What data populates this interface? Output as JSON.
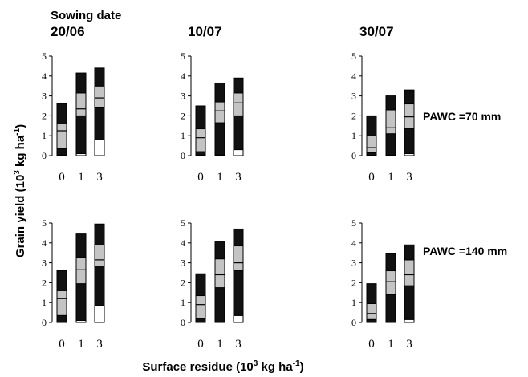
{
  "figure": {
    "header_label": "Sowing date",
    "y_axis_title_main": "Grain yield (10",
    "y_axis_title_exp": "3",
    "y_axis_title_unit": " kg ha",
    "y_axis_title_unit_exp": "-1",
    "y_axis_title_close": ")",
    "x_axis_title_main": "Surface residue (10",
    "x_axis_title_exp": "3",
    "x_axis_title_unit": " kg ha",
    "x_axis_title_unit_exp": "-1",
    "x_axis_title_close": ")",
    "columns": [
      "20/06",
      "10/07",
      "30/07"
    ],
    "rows": [
      "PAWC =70 mm",
      "PAWC =140 mm"
    ],
    "colors": {
      "outer": "#111111",
      "inner": "#c4c4c4",
      "base": "#ffffff",
      "ink": "#000000"
    }
  },
  "chart_data": {
    "type": "bar",
    "description_of_bar": "box plot style stacked bar: white bottom to p10, black to q1, grey q1..q3 with median line, black to max",
    "categories": [
      "0",
      "1",
      "3"
    ],
    "ylim": [
      0,
      5
    ],
    "yticks": [
      0,
      1,
      2,
      3,
      4,
      5
    ],
    "panels": [
      {
        "row": "PAWC =70 mm",
        "column": "20/06",
        "bars": [
          {
            "x": "0",
            "min": 0,
            "p10": 0.02,
            "q1": 0.35,
            "median": 1.25,
            "q3": 1.6,
            "max": 2.6
          },
          {
            "x": "1",
            "min": 0,
            "p10": 0.1,
            "q1": 2.0,
            "median": 2.35,
            "q3": 3.15,
            "max": 4.15
          },
          {
            "x": "3",
            "min": 0,
            "p10": 0.8,
            "q1": 2.4,
            "median": 2.9,
            "q3": 3.5,
            "max": 4.4
          }
        ]
      },
      {
        "row": "PAWC =70 mm",
        "column": "10/07",
        "bars": [
          {
            "x": "0",
            "min": 0,
            "p10": 0.02,
            "q1": 0.2,
            "median": 0.9,
            "q3": 1.35,
            "max": 2.5
          },
          {
            "x": "1",
            "min": 0,
            "p10": 0.03,
            "q1": 1.65,
            "median": 2.25,
            "q3": 2.7,
            "max": 3.65
          },
          {
            "x": "3",
            "min": 0,
            "p10": 0.3,
            "q1": 2.0,
            "median": 2.65,
            "q3": 3.15,
            "max": 3.9
          }
        ]
      },
      {
        "row": "PAWC =70 mm",
        "column": "30/07",
        "bars": [
          {
            "x": "0",
            "min": 0,
            "p10": 0.02,
            "q1": 0.15,
            "median": 0.4,
            "q3": 1.0,
            "max": 2.0
          },
          {
            "x": "1",
            "min": 0,
            "p10": 0.02,
            "q1": 1.1,
            "median": 1.4,
            "q3": 2.3,
            "max": 3.0
          },
          {
            "x": "3",
            "min": 0,
            "p10": 0.1,
            "q1": 1.35,
            "median": 1.95,
            "q3": 2.6,
            "max": 3.3
          }
        ]
      },
      {
        "row": "PAWC =140 mm",
        "column": "20/06",
        "bars": [
          {
            "x": "0",
            "min": 0,
            "p10": 0.02,
            "q1": 0.35,
            "median": 1.2,
            "q3": 1.6,
            "max": 2.6
          },
          {
            "x": "1",
            "min": 0,
            "p10": 0.1,
            "q1": 1.95,
            "median": 2.65,
            "q3": 3.25,
            "max": 4.45
          },
          {
            "x": "3",
            "min": 0,
            "p10": 0.85,
            "q1": 2.8,
            "median": 3.15,
            "q3": 3.9,
            "max": 4.95
          }
        ]
      },
      {
        "row": "PAWC =140 mm",
        "column": "10/07",
        "bars": [
          {
            "x": "0",
            "min": 0,
            "p10": 0.02,
            "q1": 0.2,
            "median": 0.9,
            "q3": 1.35,
            "max": 2.45
          },
          {
            "x": "1",
            "min": 0,
            "p10": 0.03,
            "q1": 1.75,
            "median": 2.4,
            "q3": 3.2,
            "max": 4.05
          },
          {
            "x": "3",
            "min": 0,
            "p10": 0.35,
            "q1": 2.6,
            "median": 3.0,
            "q3": 3.85,
            "max": 4.7
          }
        ]
      },
      {
        "row": "PAWC =140 mm",
        "column": "30/07",
        "bars": [
          {
            "x": "0",
            "min": 0,
            "p10": 0.02,
            "q1": 0.15,
            "median": 0.45,
            "q3": 0.95,
            "max": 1.95
          },
          {
            "x": "1",
            "min": 0,
            "p10": 0.02,
            "q1": 1.4,
            "median": 2.05,
            "q3": 2.6,
            "max": 3.45
          },
          {
            "x": "3",
            "min": 0,
            "p10": 0.15,
            "q1": 1.85,
            "median": 2.4,
            "q3": 3.15,
            "max": 3.9
          }
        ]
      }
    ]
  }
}
